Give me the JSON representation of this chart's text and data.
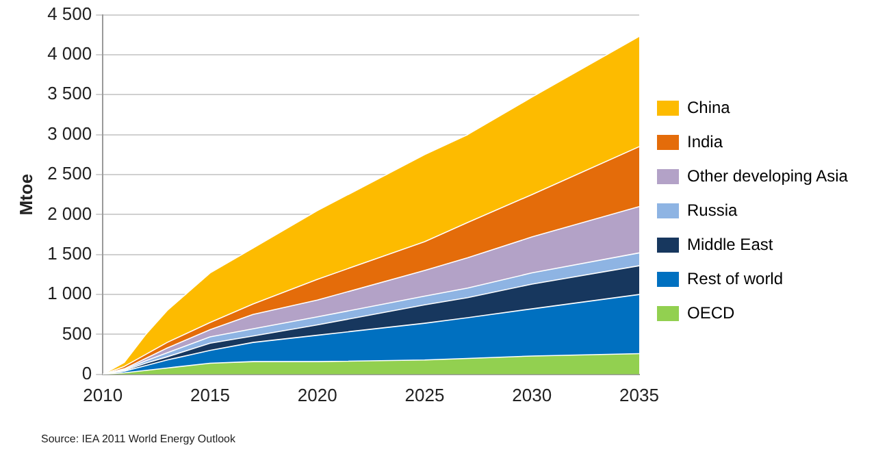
{
  "chart_data": {
    "type": "area",
    "stacked": true,
    "ylabel": "Mtoe",
    "x": [
      2010,
      2011,
      2012,
      2013,
      2015,
      2017,
      2020,
      2025,
      2027,
      2030,
      2035
    ],
    "series": [
      {
        "name": "OECD",
        "color": "#92d050",
        "values": [
          0,
          20,
          50,
          80,
          140,
          160,
          160,
          180,
          200,
          230,
          260
        ]
      },
      {
        "name": "Rest of world",
        "color": "#0070c0",
        "values": [
          0,
          20,
          60,
          100,
          160,
          240,
          330,
          460,
          510,
          590,
          740
        ]
      },
      {
        "name": "Middle East",
        "color": "#17375e",
        "values": [
          0,
          10,
          30,
          40,
          90,
          80,
          130,
          230,
          250,
          310,
          360
        ]
      },
      {
        "name": "Russia",
        "color": "#8eb4e3",
        "values": [
          0,
          10,
          30,
          50,
          80,
          90,
          100,
          110,
          120,
          140,
          160
        ]
      },
      {
        "name": "Other developing Asia",
        "color": "#b3a2c7",
        "values": [
          0,
          10,
          30,
          60,
          90,
          180,
          210,
          320,
          380,
          450,
          580
        ]
      },
      {
        "name": "India",
        "color": "#e46c0a",
        "values": [
          0,
          30,
          50,
          70,
          90,
          130,
          260,
          360,
          440,
          530,
          750
        ]
      },
      {
        "name": "China",
        "color": "#fdbb00",
        "values": [
          0,
          50,
          250,
          400,
          620,
          700,
          860,
          1090,
          1100,
          1220,
          1380
        ]
      }
    ],
    "xlim": [
      2010,
      2035
    ],
    "xticks": [
      2010,
      2015,
      2020,
      2025,
      2030,
      2035
    ],
    "ylim": [
      0,
      4500
    ],
    "yticks": [
      0,
      500,
      {
        "value": 1000,
        "label": "1 000"
      },
      {
        "value": 1500,
        "label": "1 500"
      },
      {
        "value": 2000,
        "label": "2 000"
      },
      {
        "value": 2500,
        "label": "2 500"
      },
      {
        "value": 3000,
        "label": "3 000"
      },
      {
        "value": 3500,
        "label": "3 500"
      },
      {
        "value": 4000,
        "label": "4 000"
      },
      {
        "value": 4500,
        "label": "4 500"
      }
    ],
    "grid": "y",
    "legend": "right",
    "annotations": [
      "Source:  IEA 2011 World Energy Outlook"
    ]
  }
}
